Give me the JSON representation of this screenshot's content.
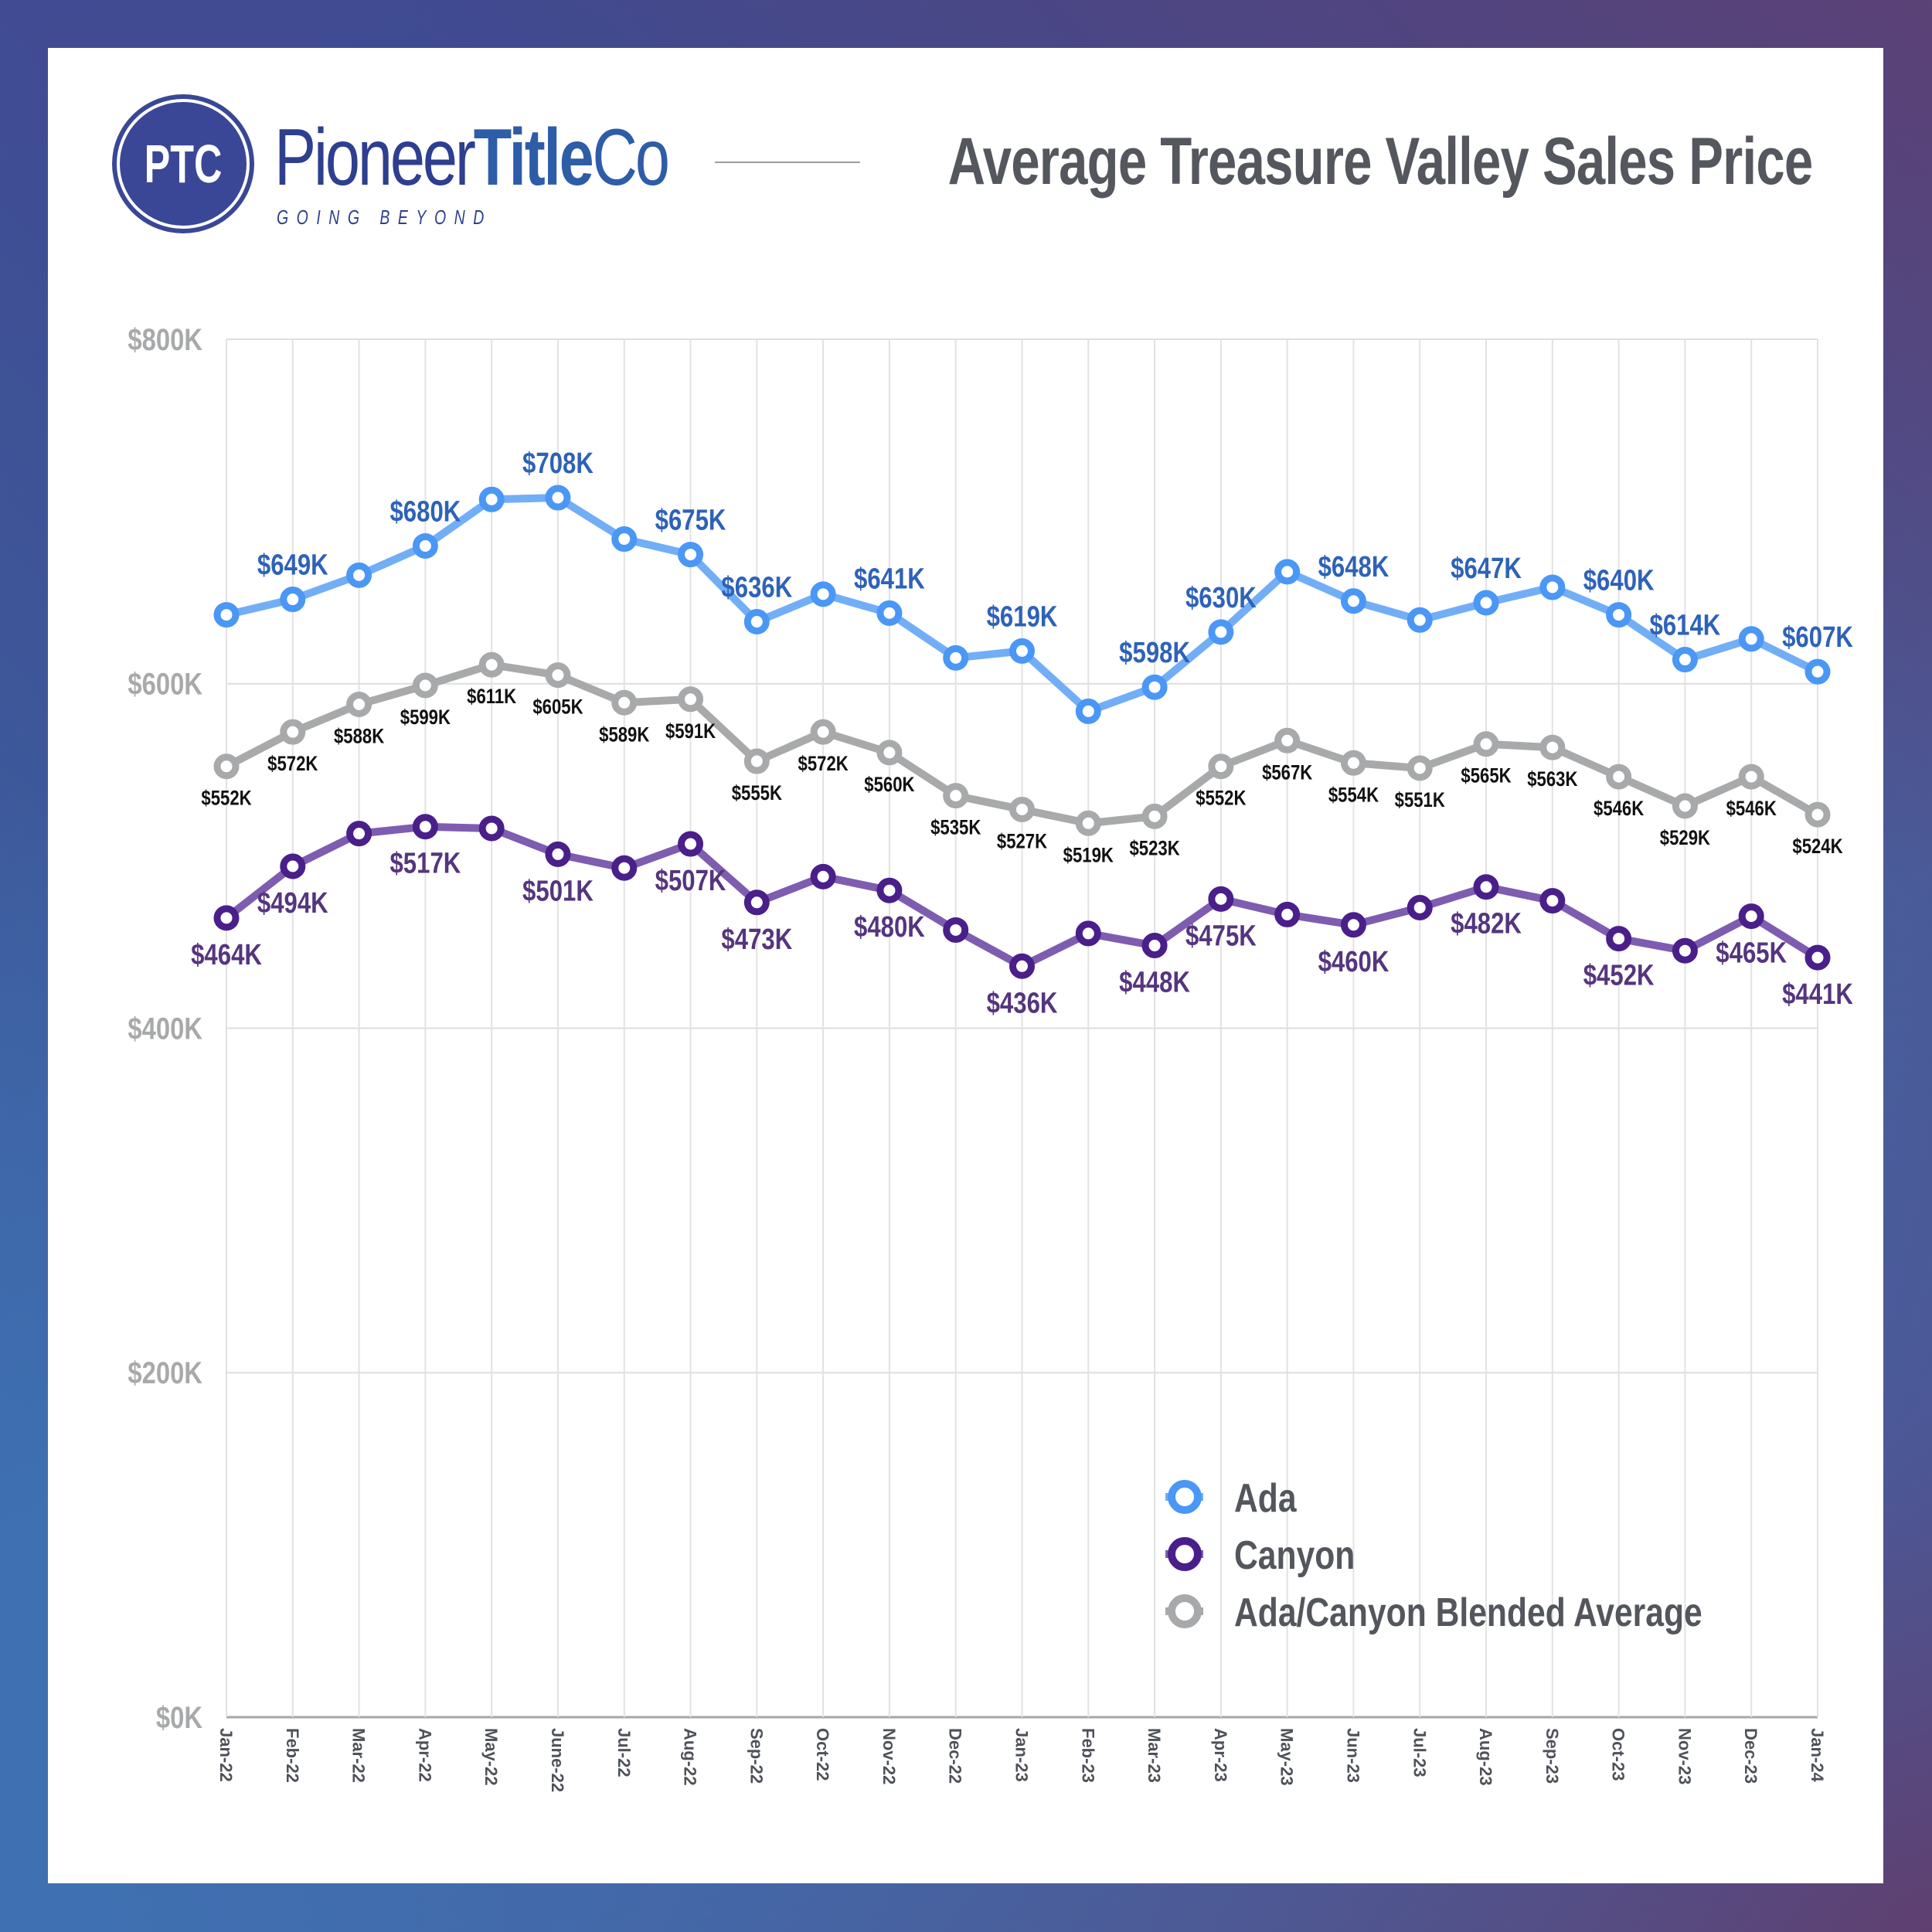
{
  "header": {
    "logo_initials": "PTC",
    "brand_regular": "Pioneer",
    "brand_bold": "Title",
    "brand_suffix": "Co",
    "tagline": "GOING BEYOND",
    "title": "Average Treasure Valley Sales Price"
  },
  "colors": {
    "ada": "#4a97f5",
    "ada_line": "#72aef6",
    "ada_label": "#2e62b8",
    "canyon": "#4a1f8a",
    "canyon_line": "#7e5db0",
    "canyon_label": "#55357e",
    "blend": "#a8a9aa",
    "blend_label": "#111111",
    "brand_navy": "#3a4796"
  },
  "chart_data": {
    "type": "line",
    "title": "Average Treasure Valley Sales Price",
    "xlabel": "",
    "ylabel": "",
    "ylim": [
      0,
      800
    ],
    "y_unit": "$K",
    "yticks": [
      0,
      200,
      400,
      600,
      800
    ],
    "ytick_labels": [
      "$0K",
      "$200K",
      "$400K",
      "$600K",
      "$800K"
    ],
    "grid": true,
    "legend_position": "bottom-right",
    "categories": [
      "Jan-22",
      "Feb-22",
      "Mar-22",
      "Apr-22",
      "May-22",
      "June-22",
      "Jul-22",
      "Aug-22",
      "Sep-22",
      "Oct-22",
      "Nov-22",
      "Dec-22",
      "Jan-23",
      "Feb-23",
      "Mar-23",
      "Apr-23",
      "May-23",
      "Jun-23",
      "Jul-23",
      "Aug-23",
      "Sep-23",
      "Oct-23",
      "Nov-23",
      "Dec-23",
      "Jan-24"
    ],
    "series": [
      {
        "name": "Ada",
        "key": "ada",
        "values": [
          640,
          649,
          663,
          680,
          707,
          708,
          684,
          675,
          636,
          652,
          641,
          615,
          619,
          584,
          598,
          630,
          665,
          648,
          637,
          647,
          656,
          640,
          614,
          626,
          607
        ],
        "labels": [
          null,
          "$649K",
          null,
          "$680K",
          null,
          "$708K",
          null,
          "$675K",
          "$636K",
          null,
          "$641K",
          null,
          "$619K",
          null,
          "$598K",
          "$630K",
          null,
          "$648K",
          null,
          "$647K",
          null,
          "$640K",
          "$614K",
          null,
          "$607K"
        ],
        "label_position": "above"
      },
      {
        "name": "Canyon",
        "key": "canyon",
        "values": [
          464,
          494,
          513,
          517,
          516,
          501,
          493,
          507,
          473,
          488,
          480,
          457,
          436,
          455,
          448,
          475,
          466,
          460,
          470,
          482,
          474,
          452,
          445,
          465,
          441
        ],
        "labels": [
          "$464K",
          "$494K",
          null,
          "$517K",
          null,
          "$501K",
          null,
          "$507K",
          "$473K",
          null,
          "$480K",
          null,
          "$436K",
          null,
          "$448K",
          "$475K",
          null,
          "$460K",
          null,
          "$482K",
          null,
          "$452K",
          null,
          "$465K",
          "$441K"
        ],
        "label_position": "below"
      },
      {
        "name": "Ada/Canyon Blended Average",
        "key": "blend",
        "values": [
          552,
          572,
          588,
          599,
          611,
          605,
          589,
          591,
          555,
          572,
          560,
          535,
          527,
          519,
          523,
          552,
          567,
          554,
          551,
          565,
          563,
          546,
          529,
          546,
          524
        ],
        "labels": [
          "$552K",
          "$572K",
          "$588K",
          "$599K",
          "$611K",
          "$605K",
          "$589K",
          "$591K",
          "$555K",
          "$572K",
          "$560K",
          "$535K",
          "$527K",
          "$519K",
          "$523K",
          "$552K",
          "$567K",
          "$554K",
          "$551K",
          "$565K",
          "$563K",
          "$546K",
          "$529K",
          "$546K",
          "$524K"
        ],
        "label_position": "below"
      }
    ]
  },
  "legend": {
    "items": [
      {
        "label": "Ada",
        "key": "ada"
      },
      {
        "label": "Canyon",
        "key": "canyon"
      },
      {
        "label": "Ada/Canyon Blended Average",
        "key": "blend"
      }
    ]
  }
}
